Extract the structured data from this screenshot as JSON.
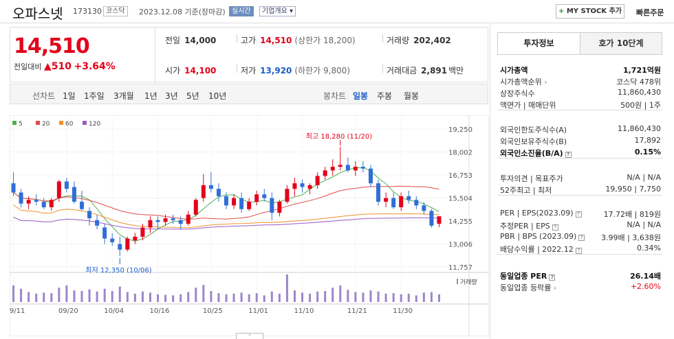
{
  "header": {
    "name": "오파스넷",
    "code": "173130",
    "market": "코스닥",
    "date": "2023.12.08",
    "basis": "기준(장마감)",
    "realtime": "실시간",
    "company_info": "기업개요 ▾",
    "my_stock_plus": "+",
    "my_stock_label": "MY STOCK 추가",
    "quick_order": "빠른주문"
  },
  "quote": {
    "price": "14,510",
    "prev_label": "전일대비",
    "change": "▲510",
    "change_pct": "+3.64%",
    "prev_close_label": "전일",
    "prev_close": "14,000",
    "high_label": "고가",
    "high": "14,510",
    "upper_limit": "(상한가 18,200)",
    "volume_label": "거래량",
    "volume": "202,402",
    "open_label": "시가",
    "open": "14,100",
    "low_label": "저가",
    "low": "13,920",
    "lower_limit": "(하한가 9,800)",
    "amount_label": "거래대금",
    "amount": "2,891",
    "amount_unit": "백만"
  },
  "toolbar": {
    "line_label": "선차트",
    "periods": [
      "1일",
      "1주일",
      "3개월",
      "1년",
      "3년",
      "5년",
      "10년"
    ],
    "candle_label": "봉차트",
    "candle_types": [
      "일봉",
      "주봉",
      "월봉"
    ]
  },
  "chart_data": {
    "type": "candlestick",
    "legend": [
      "5",
      "20",
      "60",
      "120"
    ],
    "ma_colors": [
      "#4fb04f",
      "#e14b4b",
      "#f0902a",
      "#9b59c7"
    ],
    "up_color": "#e3001b",
    "down_color": "#2f6fd6",
    "y_ticks": [
      "19,250",
      "18,002",
      "16,753",
      "15,504",
      "14,255",
      "13,006",
      "11,757"
    ],
    "y_range": [
      11757,
      19250
    ],
    "x_labels": [
      "09/11",
      "09/20",
      "10/04",
      "10/16",
      "10/25",
      "11/01",
      "11/10",
      "11/21",
      "11/30"
    ],
    "x_label_index": [
      0,
      7,
      13,
      19,
      26,
      32,
      38,
      45,
      51
    ],
    "max_label": "최고 18,280 (11/20)",
    "min_label": "최저 12,350 (10/06)",
    "max_index": 43,
    "min_index": 14,
    "volume_label": "거래량",
    "candles": [
      [
        16300,
        16900,
        15600,
        15800
      ],
      [
        15800,
        16000,
        15000,
        15200
      ],
      [
        15200,
        15600,
        14900,
        15400
      ],
      [
        15400,
        15700,
        15100,
        15300
      ],
      [
        15300,
        15500,
        14900,
        15000
      ],
      [
        15000,
        15500,
        14800,
        15400
      ],
      [
        15500,
        16500,
        15300,
        16400
      ],
      [
        16400,
        16600,
        15800,
        16000
      ],
      [
        16100,
        16400,
        15200,
        15300
      ],
      [
        15300,
        15900,
        14800,
        14900
      ],
      [
        14800,
        15000,
        14000,
        14400
      ],
      [
        14300,
        14600,
        13800,
        14000
      ],
      [
        13900,
        14100,
        13000,
        13300
      ],
      [
        13300,
        13600,
        12900,
        13100
      ],
      [
        13000,
        13400,
        12350,
        12700
      ],
      [
        12700,
        13400,
        12600,
        13300
      ],
      [
        13200,
        13600,
        13000,
        13400
      ],
      [
        13400,
        14100,
        13200,
        13900
      ],
      [
        13900,
        14500,
        13600,
        14300
      ],
      [
        14300,
        14500,
        13800,
        14200
      ],
      [
        14200,
        14600,
        14000,
        14400
      ],
      [
        14400,
        14600,
        14100,
        14300
      ],
      [
        14300,
        14500,
        13800,
        14100
      ],
      [
        14100,
        14800,
        14000,
        14600
      ],
      [
        14600,
        15500,
        14500,
        15400
      ],
      [
        15500,
        16800,
        15300,
        16200
      ],
      [
        16200,
        16900,
        15800,
        16000
      ],
      [
        16000,
        16300,
        15300,
        15600
      ],
      [
        15600,
        15800,
        14900,
        15100
      ],
      [
        15100,
        15700,
        14900,
        15500
      ],
      [
        15500,
        15800,
        14700,
        14900
      ],
      [
        14900,
        15500,
        14800,
        15300
      ],
      [
        15300,
        15900,
        15100,
        15700
      ],
      [
        15700,
        16000,
        15300,
        15500
      ],
      [
        15500,
        15800,
        14300,
        14700
      ],
      [
        14700,
        15400,
        14500,
        15300
      ],
      [
        15300,
        16200,
        15200,
        16000
      ],
      [
        16000,
        16600,
        15600,
        16300
      ],
      [
        16300,
        16500,
        15800,
        16100
      ],
      [
        16000,
        16300,
        15700,
        16200
      ],
      [
        16200,
        16900,
        16000,
        16700
      ],
      [
        16700,
        17200,
        16500,
        17000
      ],
      [
        17000,
        17600,
        16700,
        17200
      ],
      [
        17200,
        18280,
        17000,
        17300
      ],
      [
        17300,
        17700,
        16900,
        17000
      ],
      [
        17000,
        17500,
        16700,
        17200
      ],
      [
        17200,
        17500,
        16900,
        17100
      ],
      [
        17100,
        17300,
        16100,
        16300
      ],
      [
        16300,
        16500,
        15100,
        15300
      ],
      [
        15300,
        15800,
        15000,
        15500
      ],
      [
        15500,
        15800,
        14900,
        15000
      ],
      [
        15000,
        15800,
        14800,
        15600
      ],
      [
        15600,
        15900,
        15200,
        15400
      ],
      [
        15400,
        15600,
        14900,
        15100
      ],
      [
        15100,
        15300,
        14600,
        14800
      ],
      [
        14800,
        14900,
        13900,
        14000
      ],
      [
        14100,
        14510,
        13920,
        14510
      ]
    ],
    "volumes": [
      300,
      240,
      180,
      150,
      170,
      160,
      260,
      300,
      210,
      200,
      230,
      190,
      240,
      200,
      280,
      180,
      150,
      190,
      170,
      140,
      130,
      120,
      140,
      180,
      260,
      310,
      200,
      160,
      140,
      150,
      170,
      140,
      160,
      120,
      190,
      150,
      500,
      210,
      170,
      150,
      190,
      200,
      260,
      300,
      220,
      180,
      170,
      210,
      190,
      150,
      160,
      140,
      150,
      120,
      170,
      180,
      140
    ]
  },
  "sidebar": {
    "tab_active": "투자정보",
    "tab_inactive": "호가 10단계",
    "group1": [
      {
        "k": "시가총액",
        "v": "1,721억원",
        "bold": true
      },
      {
        "k": "시가총액순위",
        "v": "코스닥 478위",
        "arrow": true
      },
      {
        "k": "상장주식수",
        "v": "11,860,430"
      },
      {
        "k": "액면가 | 매매단위",
        "v": "500원 | 1주"
      }
    ],
    "group2": [
      {
        "k": "외국인한도주식수(A)",
        "v": "11,860,430"
      },
      {
        "k": "외국인보유주식수(B)",
        "v": "17,892"
      },
      {
        "k": "외국인소진율(B/A)",
        "v": "0.15%",
        "bold": true,
        "help": true
      }
    ],
    "group3": [
      {
        "k": "투자의견 | 목표주가",
        "v": "N/A | N/A"
      },
      {
        "k": "52주최고 | 최저",
        "v": "19,950 | 7,750"
      }
    ],
    "group4": [
      {
        "k": "PER | EPS(2023.09)",
        "v": "17.72배 | 819원",
        "help": true
      },
      {
        "k": "추정PER | EPS",
        "v": "N/A | N/A",
        "help": true
      },
      {
        "k": "PBR | BPS (2023.09)",
        "v": "3.99배 | 3,638원",
        "help": true
      },
      {
        "k": "배당수익률 | 2022.12",
        "v": "0.34%",
        "help": true
      }
    ],
    "group5": [
      {
        "k": "동일업종 PER",
        "v": "26.14배",
        "bold": true,
        "help": true
      },
      {
        "k": "동일업종 등락률",
        "v": "+2.60%",
        "arrow": true,
        "red": true
      }
    ]
  },
  "collapse_symbol": "⌃"
}
